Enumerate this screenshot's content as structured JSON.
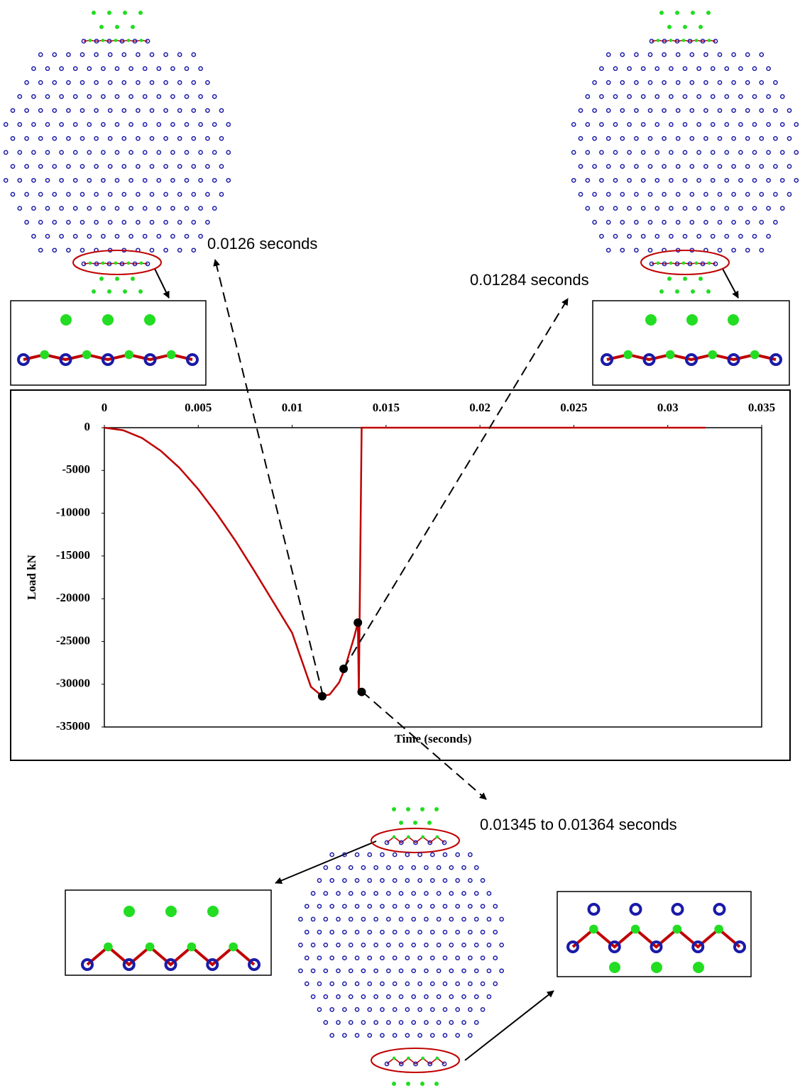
{
  "chart_data": {
    "type": "line",
    "x_label": "Time (seconds)",
    "y_label": "Load kN",
    "x": [
      0,
      0.001,
      0.002,
      0.003,
      0.004,
      0.005,
      0.006,
      0.007,
      0.008,
      0.009,
      0.01,
      0.011,
      0.0116,
      0.012,
      0.0125,
      0.0128,
      0.013,
      0.0133,
      0.0135,
      0.01355,
      0.0137,
      0.032
    ],
    "values": [
      0,
      -300,
      -1200,
      -2700,
      -4700,
      -7200,
      -10100,
      -13300,
      -16800,
      -20400,
      -24000,
      -30300,
      -31400,
      -31200,
      -29800,
      -28200,
      -26700,
      -24500,
      -22800,
      -31000,
      0,
      0
    ],
    "color": "#c00000",
    "points": {
      "x": [
        0.0116,
        0.01274,
        0.0135,
        0.0137
      ],
      "y": [
        -31400,
        -28200,
        -22800,
        -30900
      ]
    },
    "xlim": [
      0,
      0.035
    ],
    "xticks": [
      0,
      0.005,
      0.01,
      0.015,
      0.02,
      0.025,
      0.03,
      0.035
    ],
    "ylim": [
      -35000,
      0
    ],
    "yticks": [
      0,
      -5000,
      -10000,
      -15000,
      -20000,
      -25000,
      -30000,
      -35000
    ],
    "annotations": [
      "0.0126 seconds",
      "0.01284 seconds",
      "0.01345 to 0.01364 seconds"
    ]
  }
}
